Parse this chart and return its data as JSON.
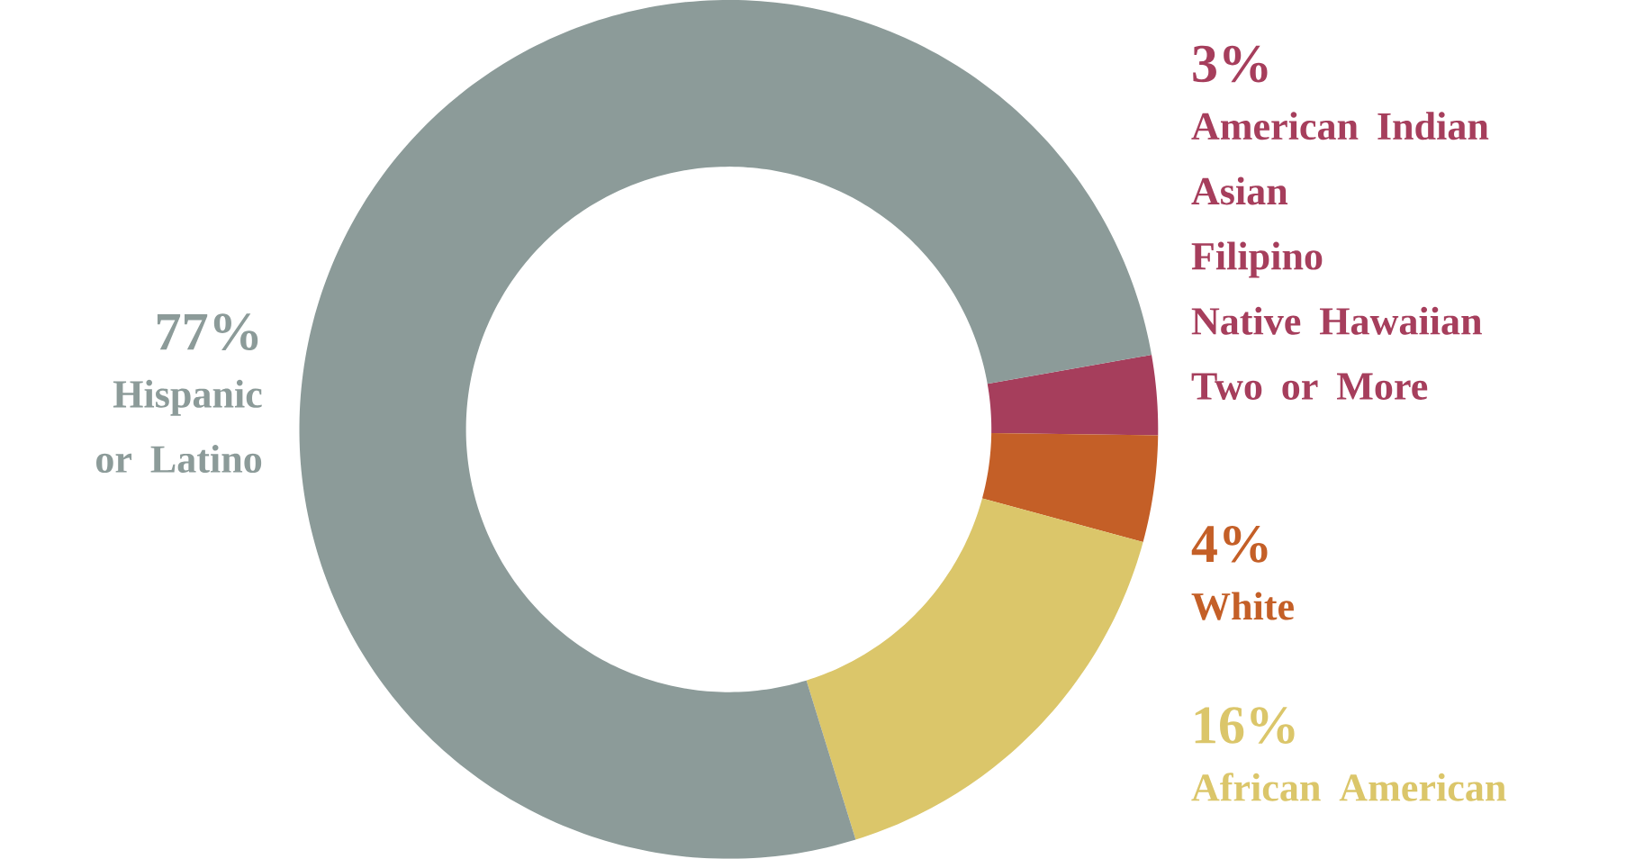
{
  "chart_data": {
    "type": "donut",
    "categories": [
      "American Indian\nAsian\nFilipino\nNative Hawaiian\nTwo or More",
      "White",
      "African American",
      "Hispanic\nor Latino"
    ],
    "values": [
      3,
      4,
      16,
      77
    ],
    "value_labels": [
      "3%",
      "4%",
      "16%",
      "77%"
    ],
    "colors": [
      "#a63e5c",
      "#c45f27",
      "#dbc66a",
      "#8c9b99"
    ]
  }
}
